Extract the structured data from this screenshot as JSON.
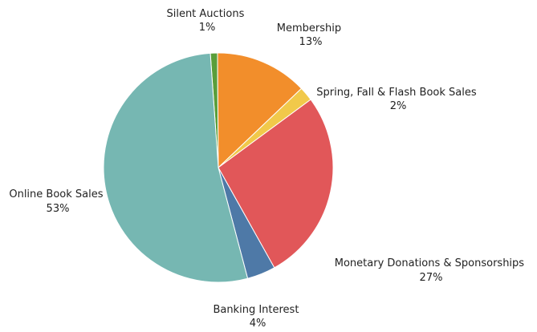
{
  "chart_data": {
    "type": "pie",
    "title": "",
    "slices": [
      {
        "label": "Silent Auctions",
        "value": 1,
        "pct_label": "1%",
        "color": "#5a9e3a"
      },
      {
        "label": "Membership",
        "value": 13,
        "pct_label": "13%",
        "color": "#f28e2b"
      },
      {
        "label": "Spring, Fall & Flash Book Sales",
        "value": 2,
        "pct_label": "2%",
        "color": "#f1c94a"
      },
      {
        "label": "Monetary Donations & Sponsorships",
        "value": 27,
        "pct_label": "27%",
        "color": "#e15759"
      },
      {
        "label": "Banking Interest",
        "value": 4,
        "pct_label": "4%",
        "color": "#4e79a7"
      },
      {
        "label": "Online Book Sales",
        "value": 53,
        "pct_label": "53%",
        "color": "#76b7b2"
      }
    ]
  }
}
